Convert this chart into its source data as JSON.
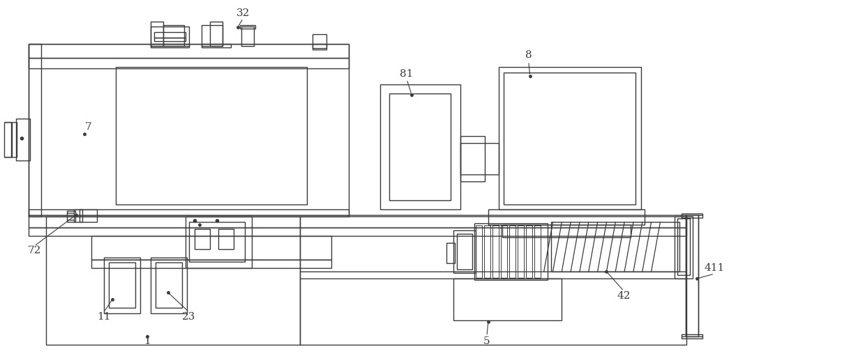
{
  "bg_color": "#ffffff",
  "line_color": "#3a3a3a",
  "lw": 1.0,
  "fig_width": 12.4,
  "fig_height": 5.13
}
